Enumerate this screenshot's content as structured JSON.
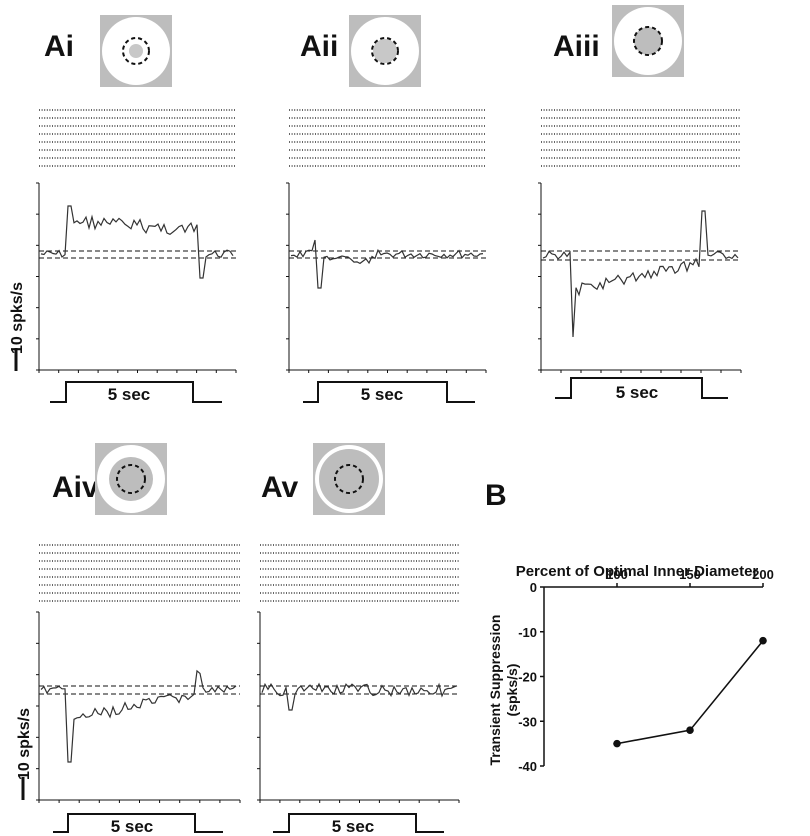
{
  "figure": {
    "scale_label": "10 spks/s",
    "stim_label": "5 sec"
  },
  "panels": [
    {
      "id": "Ai",
      "label": "Ai",
      "surround_type": "full",
      "center_size": "small",
      "center_fill": "#c8c8c8",
      "traces": []
    },
    {
      "id": "Aii",
      "label": "Aii",
      "surround_type": "full",
      "center_size": "medium",
      "center_fill": "#c8c8c8",
      "traces": []
    },
    {
      "id": "Aiii",
      "label": "Aiii",
      "surround_type": "full",
      "center_size": "large",
      "center_fill": "#bdbdbd",
      "traces": []
    },
    {
      "id": "Aiv",
      "label": "Aiv",
      "surround_type": "annulus",
      "center_size": "large",
      "center_fill": "#bdbdbd",
      "traces": []
    },
    {
      "id": "Av",
      "label": "Av",
      "surround_type": "thin-annulus",
      "center_size": "large",
      "center_fill": "#bdbdbd",
      "traces": []
    }
  ],
  "panel_b": {
    "label": "B",
    "title": "Percent of Optimal Inner Diameter",
    "ylabel": "Transient Suppression",
    "ylabel2": "(spks/s)",
    "x_ticks": [
      "100",
      "150",
      "200"
    ],
    "y_ticks": [
      "0",
      "-10",
      "-20",
      "-30",
      "-40"
    ]
  },
  "chart_data": [
    {
      "type": "line",
      "title": "Percent of Optimal Inner Diameter",
      "xlabel": "Percent of Optimal Inner Diameter",
      "ylabel": "Transient Suppression (spks/s)",
      "x": [
        100,
        150,
        200
      ],
      "y": [
        -35,
        -32,
        -12
      ],
      "xlim": [
        50,
        200
      ],
      "ylim": [
        -40,
        0
      ],
      "x_ticks": [
        100,
        150,
        200
      ],
      "y_ticks": [
        0,
        -10,
        -20,
        -30,
        -40
      ],
      "marker": "filled-circle",
      "color": "#111111"
    }
  ]
}
